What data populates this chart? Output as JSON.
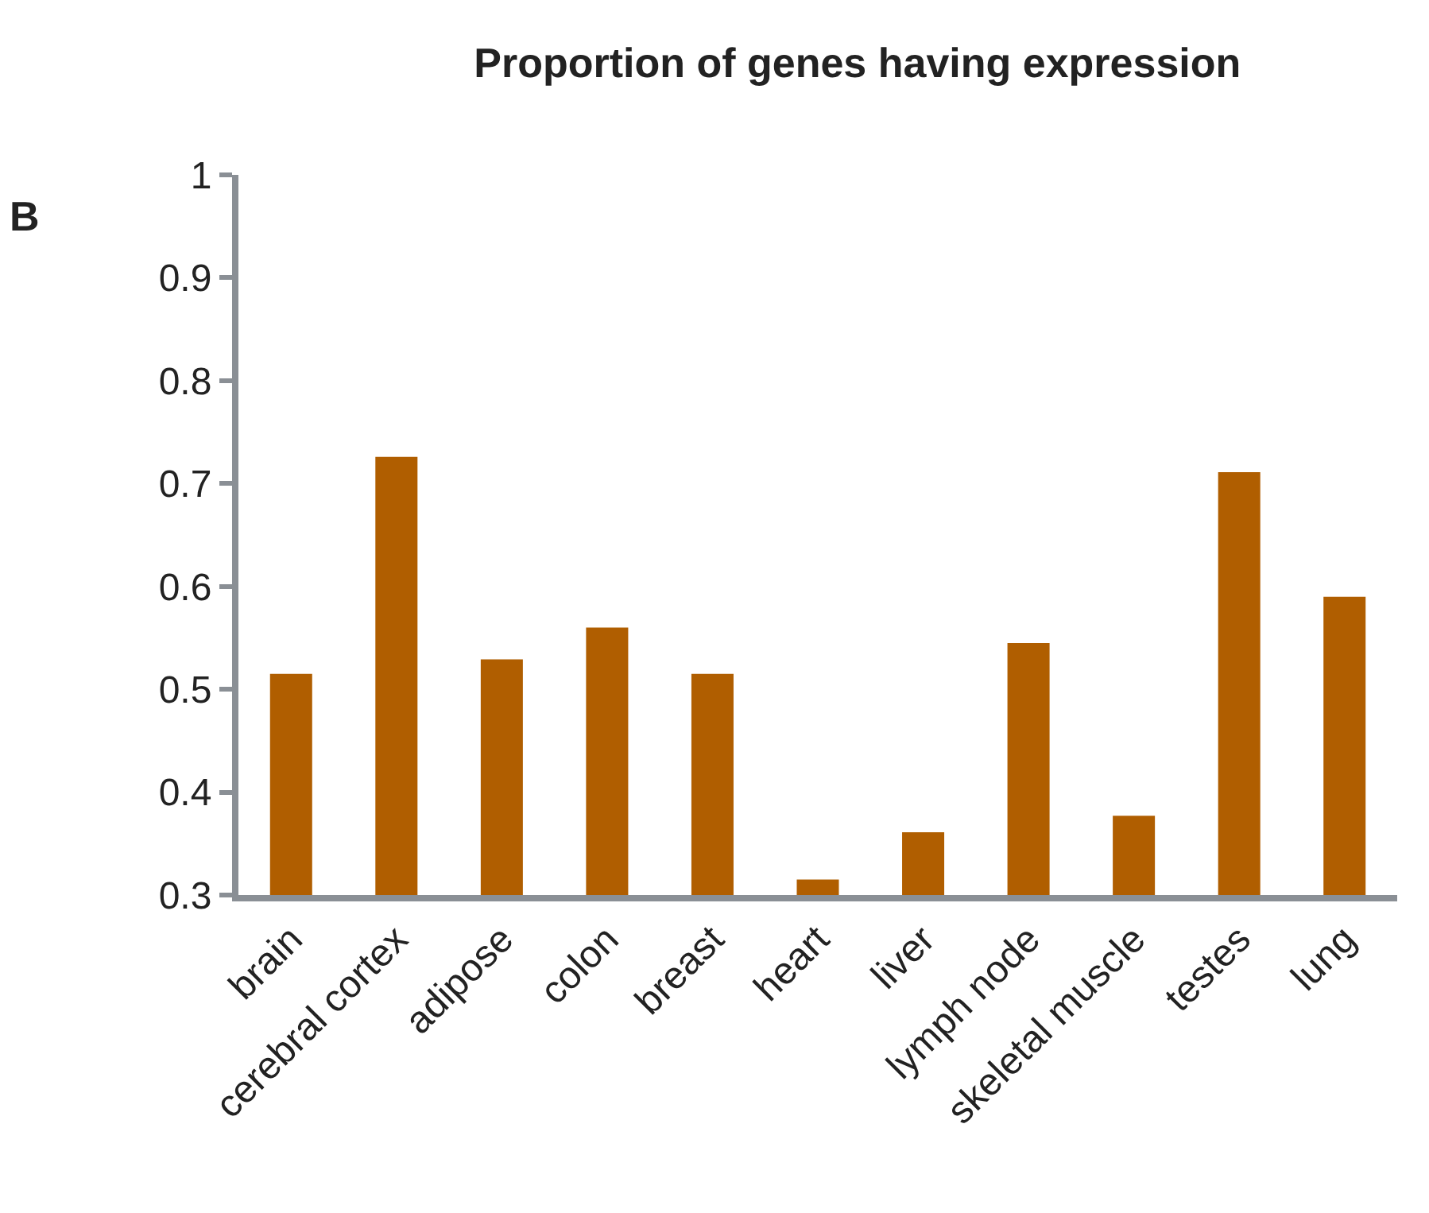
{
  "chart_data": {
    "type": "bar",
    "title": "Proportion of genes having expression",
    "annotations": [
      "B"
    ],
    "categories": [
      "brain",
      "cerebral cortex",
      "adipose",
      "colon",
      "breast",
      "heart",
      "liver",
      "lymph node",
      "skeletal muscle",
      "testes",
      "lung"
    ],
    "values": [
      0.515,
      0.726,
      0.529,
      0.56,
      0.515,
      0.315,
      0.361,
      0.545,
      0.377,
      0.711,
      0.59
    ],
    "color": "#b05e00",
    "ylim": [
      0.3,
      1
    ],
    "yticks": [
      0.3,
      0.4,
      0.5,
      0.6,
      0.7,
      0.8,
      0.9,
      1
    ]
  }
}
